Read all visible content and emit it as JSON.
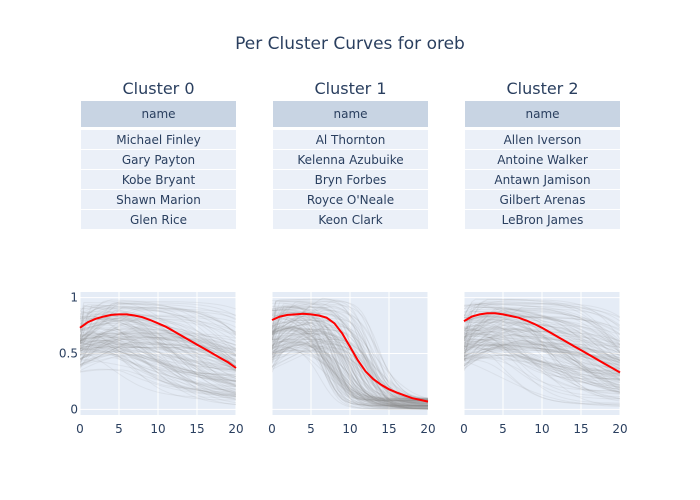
{
  "title": "Per Cluster Curves for oreb",
  "colors": {
    "mean_line": "#ff0000",
    "background_curves": "#888888",
    "plot_bg": "#e5ecf6",
    "header_bg": "#c8d4e3",
    "cell_bg": "#ebf0f8",
    "text": "#2a3f5f"
  },
  "chart_data": [
    {
      "type": "table",
      "title": "Cluster 0",
      "columns": [
        "name"
      ],
      "rows": [
        "Michael Finley",
        "Gary Payton",
        "Kobe Bryant",
        "Shawn Marion",
        "Glen Rice"
      ]
    },
    {
      "type": "table",
      "title": "Cluster 1",
      "columns": [
        "name"
      ],
      "rows": [
        "Al Thornton",
        "Kelenna Azubuike",
        "Bryn Forbes",
        "Royce O'Neale",
        "Keon Clark"
      ]
    },
    {
      "type": "table",
      "title": "Cluster 2",
      "columns": [
        "name"
      ],
      "rows": [
        "Allen Iverson",
        "Antoine Walker",
        "Antawn Jamison",
        "Gilbert Arenas",
        "LeBron James"
      ]
    },
    {
      "type": "line",
      "title": "",
      "xlabel": "",
      "ylabel": "",
      "xlim": [
        0,
        20
      ],
      "ylim": [
        -0.05,
        1.05
      ],
      "xticks": [
        0,
        5,
        10,
        15,
        20
      ],
      "yticks": [
        0,
        0.5,
        1
      ],
      "ytick_labels": [
        "0",
        "0.5",
        "1"
      ],
      "grid": true,
      "series": [
        {
          "x": [
            0,
            1,
            2,
            3,
            4,
            5,
            6,
            7,
            8,
            9,
            10,
            11,
            12,
            13,
            14,
            15,
            16,
            17,
            18,
            19,
            20
          ],
          "values": [
            0.73,
            0.78,
            0.81,
            0.83,
            0.845,
            0.85,
            0.85,
            0.84,
            0.825,
            0.8,
            0.77,
            0.74,
            0.7,
            0.66,
            0.62,
            0.58,
            0.54,
            0.5,
            0.46,
            0.42,
            0.37
          ]
        }
      ]
    },
    {
      "type": "line",
      "title": "",
      "xlabel": "",
      "ylabel": "",
      "xlim": [
        0,
        20
      ],
      "ylim": [
        -0.05,
        1.05
      ],
      "xticks": [
        0,
        5,
        10,
        15,
        20
      ],
      "yticks": [
        0,
        0.5,
        1
      ],
      "grid": true,
      "series": [
        {
          "x": [
            0,
            1,
            2,
            3,
            4,
            5,
            6,
            7,
            8,
            9,
            10,
            11,
            12,
            13,
            14,
            15,
            16,
            17,
            18,
            19,
            20
          ],
          "values": [
            0.8,
            0.83,
            0.845,
            0.85,
            0.855,
            0.85,
            0.84,
            0.82,
            0.77,
            0.68,
            0.56,
            0.44,
            0.34,
            0.27,
            0.22,
            0.18,
            0.15,
            0.125,
            0.1,
            0.085,
            0.07
          ]
        }
      ]
    },
    {
      "type": "line",
      "title": "",
      "xlabel": "",
      "ylabel": "",
      "xlim": [
        0,
        20
      ],
      "ylim": [
        -0.05,
        1.05
      ],
      "xticks": [
        0,
        5,
        10,
        15,
        20
      ],
      "yticks": [
        0,
        0.5,
        1
      ],
      "grid": true,
      "series": [
        {
          "x": [
            0,
            1,
            2,
            3,
            4,
            5,
            6,
            7,
            8,
            9,
            10,
            11,
            12,
            13,
            14,
            15,
            16,
            17,
            18,
            19,
            20
          ],
          "values": [
            0.79,
            0.83,
            0.85,
            0.86,
            0.86,
            0.85,
            0.835,
            0.82,
            0.795,
            0.765,
            0.73,
            0.69,
            0.65,
            0.61,
            0.57,
            0.53,
            0.49,
            0.45,
            0.41,
            0.37,
            0.33
          ]
        }
      ]
    }
  ]
}
